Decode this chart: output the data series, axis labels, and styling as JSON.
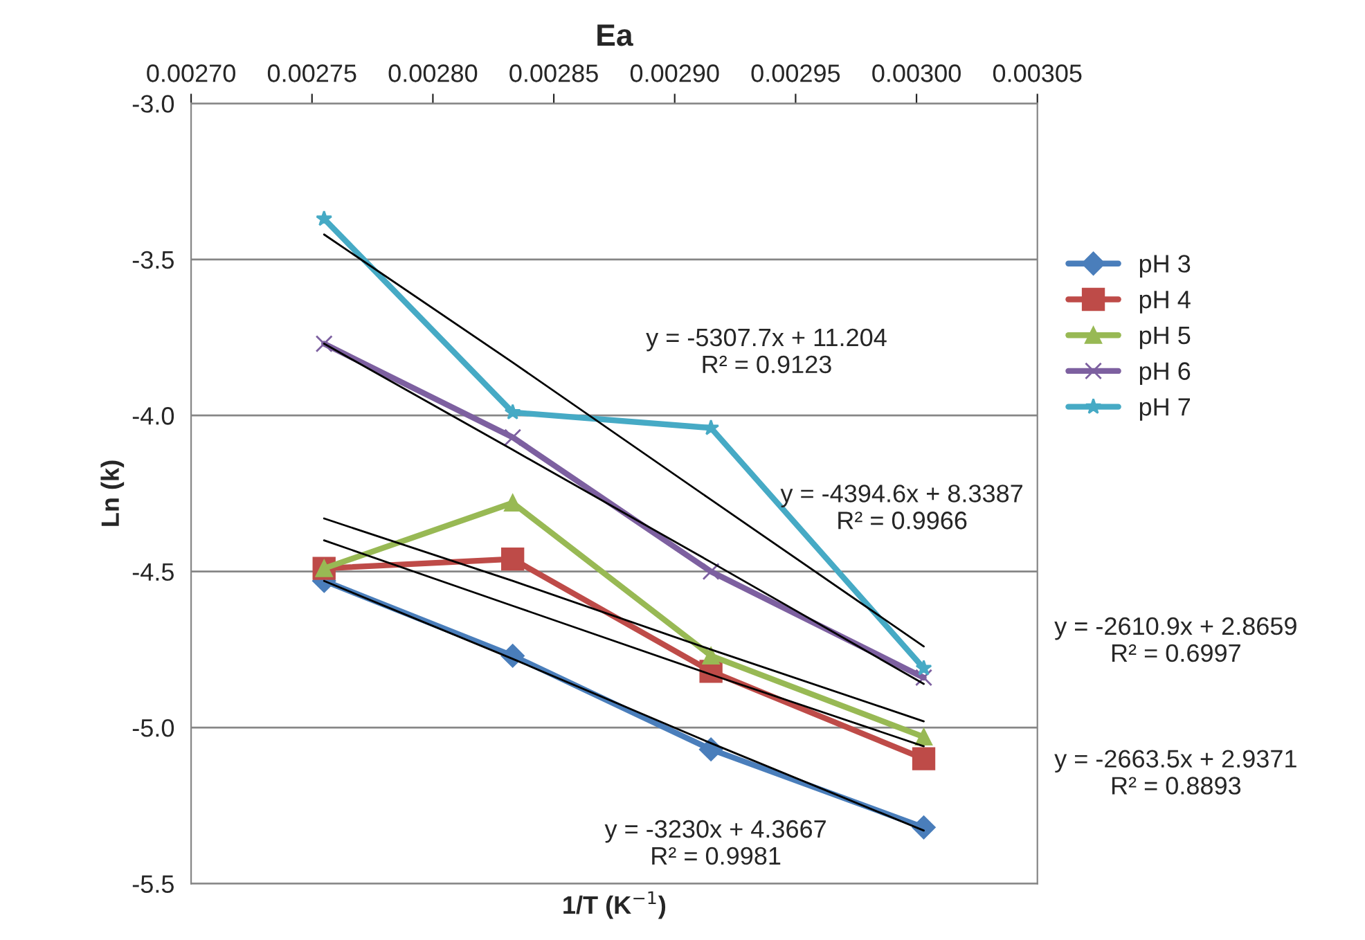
{
  "chart_data": {
    "type": "line",
    "title": "Ea",
    "xlabel": "1/T (K$^{−1}$)",
    "ylabel": "Ln (k)",
    "x": [
      0.002755,
      0.002833,
      0.002915,
      0.003003
    ],
    "series": [
      {
        "name": "pH 3",
        "color": "#4a7ebb",
        "marker": "diamond",
        "values": [
          -4.53,
          -4.77,
          -5.07,
          -5.32
        ]
      },
      {
        "name": "pH 4",
        "color": "#be4b48",
        "marker": "square",
        "values": [
          -4.49,
          -4.46,
          -4.82,
          -5.1
        ]
      },
      {
        "name": "pH 5",
        "color": "#98b954",
        "marker": "triangle",
        "values": [
          -4.49,
          -4.28,
          -4.77,
          -5.03
        ]
      },
      {
        "name": "pH 6",
        "color": "#7d60a0",
        "marker": "cross",
        "values": [
          -3.77,
          -4.07,
          -4.5,
          -4.84
        ]
      },
      {
        "name": "pH 7",
        "color": "#46aac5",
        "marker": "star",
        "values": [
          -3.37,
          -3.99,
          -4.04,
          -4.81
        ]
      },
      {
        "color": "#000000",
        "marker": "none",
        "values": [
          -3.42,
          -3.83,
          -4.27,
          -4.74
        ]
      },
      {
        "color": "#000000",
        "marker": "none",
        "values": [
          -3.77,
          -4.11,
          -4.47,
          -4.86
        ]
      },
      {
        "color": "#000000",
        "marker": "none",
        "values": [
          -4.33,
          -4.53,
          -4.75,
          -4.98
        ]
      },
      {
        "color": "#000000",
        "marker": "none",
        "values": [
          -4.4,
          -4.61,
          -4.83,
          -5.06
        ]
      },
      {
        "color": "#000000",
        "marker": "none",
        "values": [
          -4.53,
          -4.78,
          -5.05,
          -5.33
        ]
      }
    ],
    "xlim": [
      0.0027,
      0.00305
    ],
    "xticks": [
      {
        "value": 0.0027,
        "label": "0.00270"
      },
      {
        "value": 0.00275,
        "label": "0.00275"
      },
      {
        "value": 0.0028,
        "label": "0.00280"
      },
      {
        "value": 0.00285,
        "label": "0.00285"
      },
      {
        "value": 0.0029,
        "label": "0.00290"
      },
      {
        "value": 0.00295,
        "label": "0.00295"
      },
      {
        "value": 0.003,
        "label": "0.00300"
      },
      {
        "value": 0.00305,
        "label": "0.00305"
      }
    ],
    "ylim": [
      -5.5,
      -3.0
    ],
    "yticks": [
      {
        "value": -5.5,
        "label": "-5.5"
      },
      {
        "value": -5.0,
        "label": "-5.0"
      },
      {
        "value": -4.5,
        "label": "-4.5"
      },
      {
        "value": -4.0,
        "label": "-4.0"
      },
      {
        "value": -3.5,
        "label": "-3.5"
      },
      {
        "value": -3.0,
        "label": "-3.0"
      }
    ],
    "grid": "y",
    "legend": "right",
    "line_style": "solid",
    "annotations": [
      "y = -5307.7x + 11.204\nR² = 0.9123",
      "y = -4394.6x + 8.3387\nR² = 0.9966",
      "y = -2610.9x + 2.8659\nR² = 0.6997",
      "y = -2663.5x + 2.9371\nR² = 0.8893",
      "y = -3230x + 4.3667\nR² = 0.9981"
    ]
  }
}
